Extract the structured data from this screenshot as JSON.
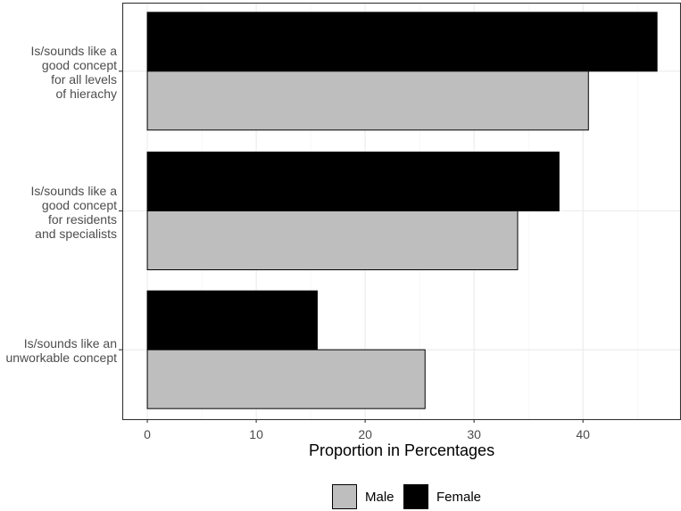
{
  "chart_data": {
    "type": "bar",
    "orientation": "horizontal",
    "categories": [
      "Is/sounds like a\ngood concept\nfor all levels\nof hierachy",
      "Is/sounds like a\ngood concept\nfor residents\nand specialists",
      "Is/sounds like an\nunworkable concept"
    ],
    "series": [
      {
        "name": "Male",
        "values": [
          40.5,
          34,
          25.5
        ],
        "color": "#bebebe"
      },
      {
        "name": "Female",
        "values": [
          46.8,
          37.8,
          15.6
        ],
        "color": "#000000"
      }
    ],
    "xlabel": "Proportion in Percentages",
    "ylabel": "",
    "xlim": [
      -2.3,
      49.0
    ],
    "xticks": [
      "0",
      "10",
      "20",
      "30",
      "40"
    ],
    "grid": true,
    "legend_position": "bottom"
  }
}
